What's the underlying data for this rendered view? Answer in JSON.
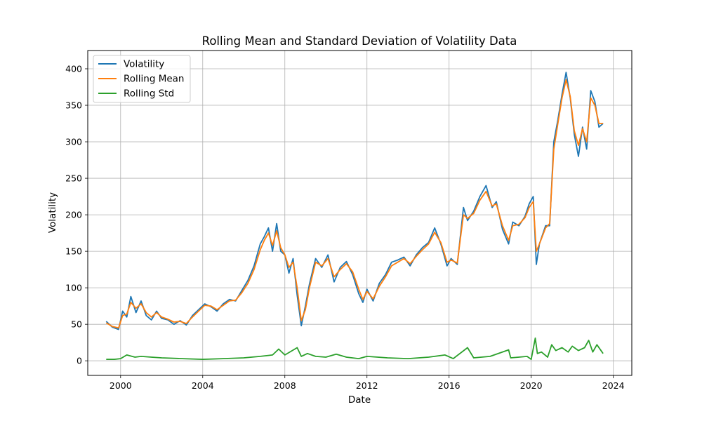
{
  "chart_data": {
    "type": "line",
    "title": "Rolling Mean and Standard Deviation of Volatility Data",
    "xlabel": "Date",
    "ylabel": "Volatility",
    "x_ticks": [
      "2000",
      "2004",
      "2008",
      "2012",
      "2016",
      "2020",
      "2024"
    ],
    "y_ticks": [
      0,
      50,
      100,
      150,
      200,
      250,
      300,
      350,
      400
    ],
    "xlim": [
      1998.4,
      2024.9
    ],
    "ylim": [
      -20,
      425
    ],
    "grid": true,
    "legend_position": "top-left",
    "colors": {
      "Volatility": "#1f77b4",
      "Rolling Mean": "#ff7f0e",
      "Rolling Std": "#2ca02c"
    },
    "series": [
      {
        "name": "Volatility",
        "x": [
          1999.3,
          1999.6,
          1999.9,
          2000.1,
          2000.3,
          2000.5,
          2000.75,
          2001.0,
          2001.25,
          2001.5,
          2001.75,
          2002.0,
          2002.3,
          2002.6,
          2002.9,
          2003.2,
          2003.5,
          2003.8,
          2004.1,
          2004.4,
          2004.7,
          2005.0,
          2005.3,
          2005.6,
          2005.9,
          2006.2,
          2006.5,
          2006.8,
          2007.0,
          2007.2,
          2007.4,
          2007.6,
          2007.8,
          2008.0,
          2008.2,
          2008.4,
          2008.6,
          2008.8,
          2009.0,
          2009.2,
          2009.5,
          2009.8,
          2010.1,
          2010.4,
          2010.7,
          2011.0,
          2011.3,
          2011.6,
          2011.8,
          2012.0,
          2012.3,
          2012.6,
          2012.9,
          2013.2,
          2013.5,
          2013.8,
          2014.1,
          2014.4,
          2014.7,
          2015.0,
          2015.3,
          2015.6,
          2015.9,
          2016.1,
          2016.4,
          2016.7,
          2016.9,
          2017.2,
          2017.5,
          2017.8,
          2018.1,
          2018.3,
          2018.6,
          2018.9,
          2019.1,
          2019.4,
          2019.7,
          2019.9,
          2020.1,
          2020.25,
          2020.4,
          2020.7,
          2020.9,
          2021.1,
          2021.3,
          2021.5,
          2021.7,
          2021.9,
          2022.1,
          2022.3,
          2022.5,
          2022.7,
          2022.9,
          2023.1,
          2023.3,
          2023.5
        ],
        "y": [
          54,
          46,
          43,
          68,
          60,
          88,
          66,
          82,
          62,
          56,
          68,
          58,
          56,
          50,
          55,
          49,
          62,
          70,
          78,
          74,
          68,
          78,
          84,
          82,
          96,
          110,
          130,
          160,
          170,
          182,
          150,
          188,
          150,
          145,
          120,
          140,
          90,
          48,
          75,
          105,
          140,
          128,
          145,
          108,
          128,
          136,
          118,
          92,
          80,
          98,
          82,
          106,
          118,
          135,
          138,
          142,
          130,
          145,
          155,
          162,
          182,
          160,
          130,
          140,
          132,
          210,
          192,
          205,
          225,
          240,
          210,
          218,
          180,
          160,
          190,
          185,
          198,
          215,
          225,
          132,
          160,
          185,
          185,
          300,
          330,
          365,
          395,
          360,
          310,
          280,
          320,
          290,
          370,
          355,
          320,
          325
        ]
      },
      {
        "name": "Rolling Mean",
        "x": [
          1999.3,
          1999.6,
          1999.9,
          2000.1,
          2000.3,
          2000.5,
          2000.75,
          2001.0,
          2001.25,
          2001.5,
          2001.75,
          2002.0,
          2002.3,
          2002.6,
          2002.9,
          2003.2,
          2003.5,
          2003.8,
          2004.1,
          2004.4,
          2004.7,
          2005.0,
          2005.3,
          2005.6,
          2005.9,
          2006.2,
          2006.5,
          2006.8,
          2007.0,
          2007.2,
          2007.4,
          2007.6,
          2007.8,
          2008.0,
          2008.2,
          2008.4,
          2008.6,
          2008.8,
          2009.0,
          2009.2,
          2009.5,
          2009.8,
          2010.1,
          2010.4,
          2010.7,
          2011.0,
          2011.3,
          2011.6,
          2011.8,
          2012.0,
          2012.3,
          2012.6,
          2012.9,
          2013.2,
          2013.5,
          2013.8,
          2014.1,
          2014.4,
          2014.7,
          2015.0,
          2015.3,
          2015.6,
          2015.9,
          2016.1,
          2016.4,
          2016.7,
          2016.9,
          2017.2,
          2017.5,
          2017.8,
          2018.1,
          2018.3,
          2018.6,
          2018.9,
          2019.1,
          2019.4,
          2019.7,
          2019.9,
          2020.1,
          2020.25,
          2020.4,
          2020.7,
          2020.9,
          2021.1,
          2021.3,
          2021.5,
          2021.7,
          2021.9,
          2022.1,
          2022.3,
          2022.5,
          2022.7,
          2022.9,
          2023.1,
          2023.3,
          2023.5
        ],
        "y": [
          52,
          47,
          45,
          62,
          64,
          80,
          72,
          78,
          66,
          60,
          66,
          60,
          57,
          53,
          54,
          51,
          60,
          68,
          76,
          75,
          70,
          76,
          82,
          83,
          93,
          106,
          125,
          152,
          165,
          175,
          158,
          178,
          155,
          145,
          128,
          135,
          100,
          55,
          70,
          100,
          135,
          130,
          140,
          115,
          125,
          133,
          122,
          98,
          84,
          95,
          85,
          102,
          115,
          130,
          135,
          140,
          133,
          143,
          152,
          160,
          176,
          162,
          135,
          138,
          134,
          200,
          195,
          202,
          220,
          232,
          212,
          215,
          185,
          165,
          185,
          187,
          196,
          210,
          218,
          150,
          160,
          182,
          188,
          290,
          325,
          360,
          385,
          362,
          315,
          295,
          318,
          300,
          360,
          350,
          325,
          325
        ]
      },
      {
        "name": "Rolling Std",
        "x": [
          1999.3,
          1999.7,
          2000.0,
          2000.3,
          2000.7,
          2001.0,
          2001.5,
          2002.0,
          2003.0,
          2004.0,
          2005.0,
          2006.0,
          2006.8,
          2007.4,
          2007.7,
          2008.0,
          2008.6,
          2008.8,
          2009.1,
          2009.5,
          2010.0,
          2010.5,
          2011.0,
          2011.6,
          2012.0,
          2013.0,
          2014.0,
          2015.0,
          2015.8,
          2016.2,
          2016.9,
          2017.2,
          2018.0,
          2018.9,
          2019.0,
          2019.4,
          2019.8,
          2020.0,
          2020.2,
          2020.3,
          2020.5,
          2020.8,
          2021.0,
          2021.2,
          2021.5,
          2021.8,
          2022.0,
          2022.3,
          2022.6,
          2022.8,
          2023.0,
          2023.2,
          2023.5
        ],
        "y": [
          2,
          2,
          3,
          8,
          5,
          6,
          5,
          4,
          3,
          2,
          3,
          4,
          6,
          8,
          16,
          8,
          18,
          6,
          10,
          6,
          5,
          9,
          5,
          3,
          6,
          4,
          3,
          5,
          8,
          3,
          18,
          4,
          6,
          15,
          4,
          5,
          6,
          2,
          31,
          10,
          12,
          5,
          22,
          14,
          18,
          12,
          20,
          14,
          18,
          28,
          12,
          22,
          10
        ]
      }
    ]
  }
}
